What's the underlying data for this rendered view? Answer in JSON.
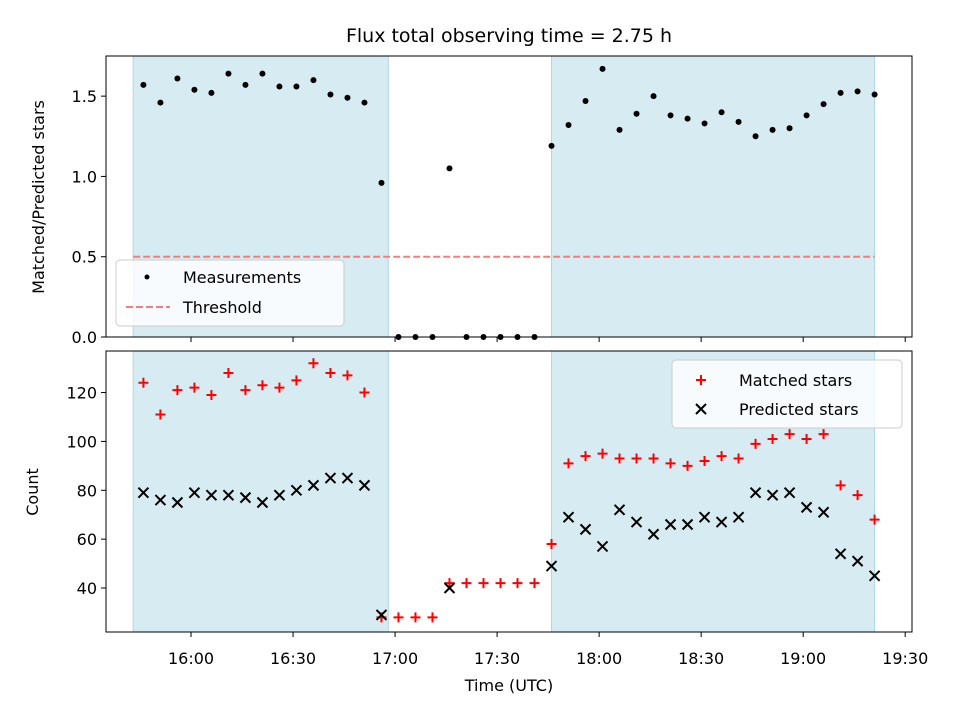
{
  "chart_data": [
    {
      "type": "scatter",
      "title": "Flux total observing time = 2.75 h",
      "xlabel": "",
      "ylabel": "Matched/Predicted stars",
      "ylim": [
        0,
        1.75
      ],
      "yticks": [
        0.0,
        0.5,
        1.0,
        1.5
      ],
      "ytick_labels": [
        "0.0",
        "0.5",
        "1.0",
        "1.5"
      ],
      "grid": false,
      "legend": "lower-left",
      "observing_windows": [
        [
          "15:43",
          "16:58"
        ],
        [
          "17:46",
          "19:21"
        ]
      ],
      "threshold": {
        "name": "Threshold",
        "y": 0.5,
        "x_range": [
          "15:43",
          "19:21"
        ],
        "color": "#f08080"
      },
      "series": [
        {
          "name": "Measurements",
          "marker": "dot",
          "color": "#000000",
          "x": [
            "15:46",
            "15:51",
            "15:56",
            "16:01",
            "16:06",
            "16:11",
            "16:16",
            "16:21",
            "16:26",
            "16:31",
            "16:36",
            "16:41",
            "16:46",
            "16:51",
            "16:56",
            "17:01",
            "17:06",
            "17:11",
            "17:16",
            "17:21",
            "17:26",
            "17:31",
            "17:36",
            "17:41",
            "17:46",
            "17:51",
            "17:56",
            "18:01",
            "18:06",
            "18:11",
            "18:16",
            "18:21",
            "18:26",
            "18:31",
            "18:36",
            "18:41",
            "18:46",
            "18:51",
            "18:56",
            "19:01",
            "19:06",
            "19:11",
            "19:16",
            "19:21"
          ],
          "y": [
            1.57,
            1.46,
            1.61,
            1.54,
            1.52,
            1.64,
            1.57,
            1.64,
            1.56,
            1.56,
            1.6,
            1.51,
            1.49,
            1.46,
            0.96,
            0.0,
            0.0,
            0.0,
            1.05,
            0.0,
            0.0,
            0.0,
            0.0,
            0.0,
            1.19,
            1.32,
            1.47,
            1.67,
            1.29,
            1.39,
            1.5,
            1.38,
            1.36,
            1.33,
            1.4,
            1.34,
            1.25,
            1.29,
            1.3,
            1.38,
            1.45,
            1.52,
            1.53,
            1.51
          ]
        }
      ]
    },
    {
      "type": "scatter",
      "title": "",
      "xlabel": "Time (UTC)",
      "ylabel": "Count",
      "ylim": [
        22,
        137
      ],
      "yticks": [
        40,
        60,
        80,
        100,
        120
      ],
      "ytick_labels": [
        "40",
        "60",
        "80",
        "100",
        "120"
      ],
      "xlim": [
        "15:35",
        "19:32"
      ],
      "xticks": [
        "16:00",
        "16:30",
        "17:00",
        "17:30",
        "18:00",
        "18:30",
        "19:00",
        "19:30"
      ],
      "xtick_labels": [
        "16:00",
        "16:30",
        "17:00",
        "17:30",
        "18:00",
        "18:30",
        "19:00",
        "19:30"
      ],
      "grid": false,
      "legend": "top-right",
      "observing_windows": [
        [
          "15:43",
          "16:58"
        ],
        [
          "17:46",
          "19:21"
        ]
      ],
      "series": [
        {
          "name": "Matched stars",
          "marker": "plus",
          "color": "#ff0000",
          "x": [
            "15:46",
            "15:51",
            "15:56",
            "16:01",
            "16:06",
            "16:11",
            "16:16",
            "16:21",
            "16:26",
            "16:31",
            "16:36",
            "16:41",
            "16:46",
            "16:51",
            "16:56",
            "17:01",
            "17:06",
            "17:11",
            "17:16",
            "17:21",
            "17:26",
            "17:31",
            "17:36",
            "17:41",
            "17:46",
            "17:51",
            "17:56",
            "18:01",
            "18:06",
            "18:11",
            "18:16",
            "18:21",
            "18:26",
            "18:31",
            "18:36",
            "18:41",
            "18:46",
            "18:51",
            "18:56",
            "19:01",
            "19:06",
            "19:11",
            "19:16",
            "19:21"
          ],
          "y": [
            124,
            111,
            121,
            122,
            119,
            128,
            121,
            123,
            122,
            125,
            132,
            128,
            127,
            120,
            28,
            28,
            28,
            28,
            42,
            42,
            42,
            42,
            42,
            42,
            58,
            91,
            94,
            95,
            93,
            93,
            93,
            91,
            90,
            92,
            94,
            93,
            99,
            101,
            103,
            101,
            103,
            82,
            78,
            68
          ]
        },
        {
          "name": "Predicted stars",
          "marker": "x",
          "color": "#000000",
          "x": [
            "15:46",
            "15:51",
            "15:56",
            "16:01",
            "16:06",
            "16:11",
            "16:16",
            "16:21",
            "16:26",
            "16:31",
            "16:36",
            "16:41",
            "16:46",
            "16:51",
            "16:56",
            "17:16",
            "17:46",
            "17:51",
            "17:56",
            "18:01",
            "18:06",
            "18:11",
            "18:16",
            "18:21",
            "18:26",
            "18:31",
            "18:36",
            "18:41",
            "18:46",
            "18:51",
            "18:56",
            "19:01",
            "19:06",
            "19:11",
            "19:16",
            "19:21"
          ],
          "y": [
            79,
            76,
            75,
            79,
            78,
            78,
            77,
            75,
            78,
            80,
            82,
            85,
            85,
            82,
            29,
            40,
            49,
            69,
            64,
            57,
            72,
            67,
            62,
            66,
            66,
            69,
            67,
            69,
            79,
            78,
            79,
            73,
            71,
            54,
            51,
            45
          ]
        }
      ]
    }
  ],
  "colors": {
    "window_fill": "#add8e6",
    "threshold": "#f08080",
    "matched": "#ff0000",
    "predicted": "#000000",
    "measurement": "#000000"
  }
}
